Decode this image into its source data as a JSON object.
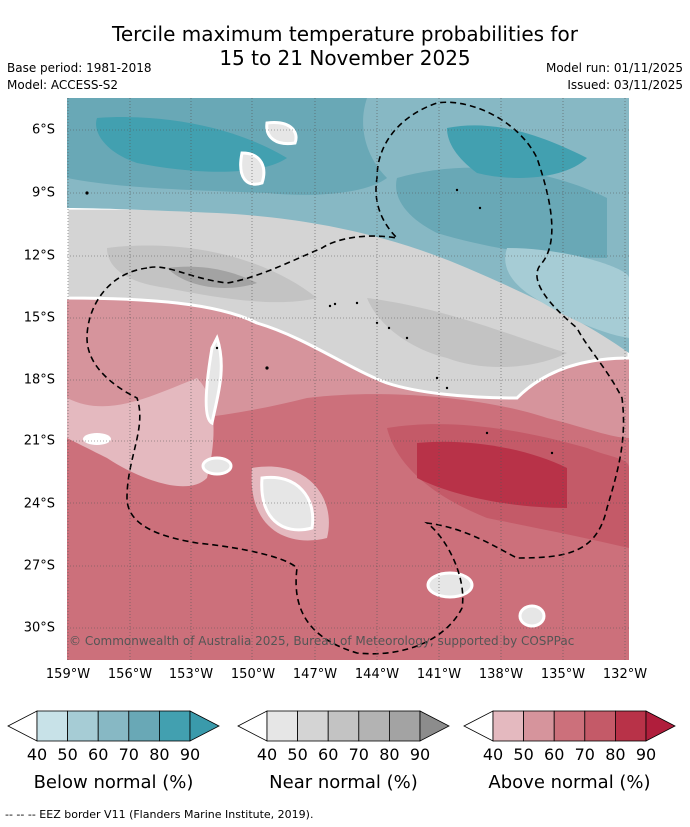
{
  "title": {
    "line1": "Tercile maximum temperature probabilities for",
    "line2": "15 to 21 November 2025"
  },
  "meta": {
    "base_period": "Base period: 1981-2018",
    "model": "Model: ACCESS-S2",
    "model_run": "Model run: 01/11/2025",
    "issued": "Issued: 03/11/2025"
  },
  "map": {
    "copyright": "© Commonwealth of Australia 2025, Bureau of Meteorology, supported by COSPPac",
    "lat_labels": [
      "6°S",
      "9°S",
      "12°S",
      "15°S",
      "18°S",
      "21°S",
      "24°S",
      "27°S",
      "30°S"
    ],
    "lon_labels": [
      "159°W",
      "156°W",
      "153°W",
      "150°W",
      "147°W",
      "144°W",
      "141°W",
      "138°W",
      "135°W",
      "132°W"
    ]
  },
  "colorbars": [
    {
      "label": "Below normal (%)",
      "ticks": [
        "40",
        "50",
        "60",
        "70",
        "80",
        "90"
      ],
      "colors": [
        "#c8e2e8",
        "#a6ccd5",
        "#87b8c4",
        "#69a8b6",
        "#42a0b0"
      ],
      "arrow": "#3a9aab"
    },
    {
      "label": "Near normal (%)",
      "ticks": [
        "40",
        "50",
        "60",
        "70",
        "80",
        "90"
      ],
      "colors": [
        "#e6e6e6",
        "#d4d4d4",
        "#c3c3c3",
        "#b3b3b3",
        "#a3a3a3"
      ],
      "arrow": "#8c8c8c"
    },
    {
      "label": "Above normal (%)",
      "ticks": [
        "40",
        "50",
        "60",
        "70",
        "80",
        "90"
      ],
      "colors": [
        "#e4b9bf",
        "#d6949c",
        "#cc707b",
        "#c45a68",
        "#b83248"
      ],
      "arrow": "#b01e3c"
    }
  ],
  "footnote": "-- -- -- EEZ border V11 (Flanders Marine Institute, 2019)."
}
